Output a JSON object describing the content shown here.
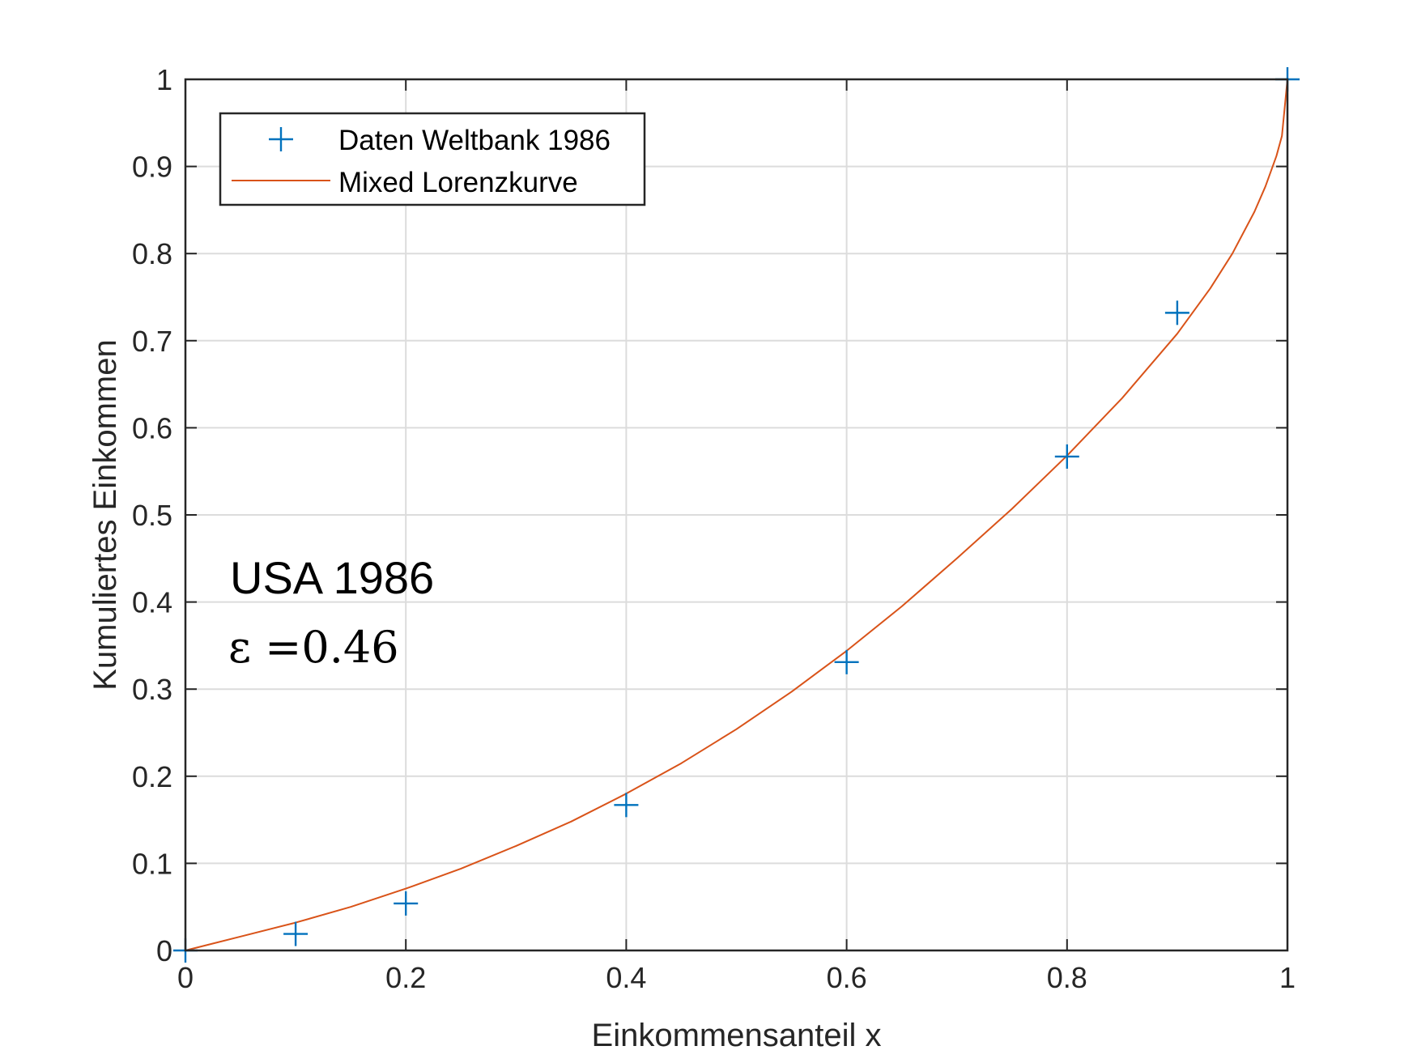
{
  "chart_data": {
    "type": "line",
    "xlabel": "Einkommensanteil x",
    "ylabel": "Kumuliertes Einkommen",
    "xlim": [
      0,
      1
    ],
    "ylim": [
      0,
      1
    ],
    "grid": true,
    "xticks": [
      0,
      0.2,
      0.4,
      0.6,
      0.8,
      1
    ],
    "xtick_labels": [
      "0",
      "0.2",
      "0.4",
      "0.6",
      "0.8",
      "1"
    ],
    "yticks": [
      0,
      0.1,
      0.2,
      0.3,
      0.4,
      0.5,
      0.6,
      0.7,
      0.8,
      0.9,
      1
    ],
    "ytick_labels": [
      "0",
      "0.1",
      "0.2",
      "0.3",
      "0.4",
      "0.5",
      "0.6",
      "0.7",
      "0.8",
      "0.9",
      "1"
    ],
    "legend_position": "top-left",
    "series": [
      {
        "name": "Daten Weltbank 1986",
        "kind": "scatter",
        "marker": "plus",
        "color": "#0072BD",
        "x": [
          0,
          0.1,
          0.2,
          0.4,
          0.6,
          0.8,
          0.9,
          1
        ],
        "y": [
          0,
          0.019,
          0.054,
          0.167,
          0.331,
          0.567,
          0.732,
          1
        ]
      },
      {
        "name": "Mixed Lorenzkurve",
        "kind": "line",
        "color": "#D95319",
        "x": [
          0,
          0.05,
          0.1,
          0.15,
          0.2,
          0.25,
          0.3,
          0.35,
          0.4,
          0.45,
          0.5,
          0.55,
          0.6,
          0.65,
          0.7,
          0.75,
          0.8,
          0.85,
          0.9,
          0.93,
          0.95,
          0.97,
          0.98,
          0.99,
          0.995,
          1
        ],
        "y": [
          0,
          0.016,
          0.032,
          0.05,
          0.071,
          0.094,
          0.12,
          0.148,
          0.18,
          0.215,
          0.254,
          0.297,
          0.344,
          0.395,
          0.45,
          0.507,
          0.568,
          0.634,
          0.708,
          0.76,
          0.8,
          0.848,
          0.877,
          0.912,
          0.935,
          1
        ]
      }
    ],
    "annotations": [
      "USA 1986",
      "ε =0.46"
    ]
  },
  "colors": {
    "data_markers": "#0072BD",
    "curve": "#D95319",
    "grid": "#dcdcdc",
    "axes": "#262626"
  }
}
